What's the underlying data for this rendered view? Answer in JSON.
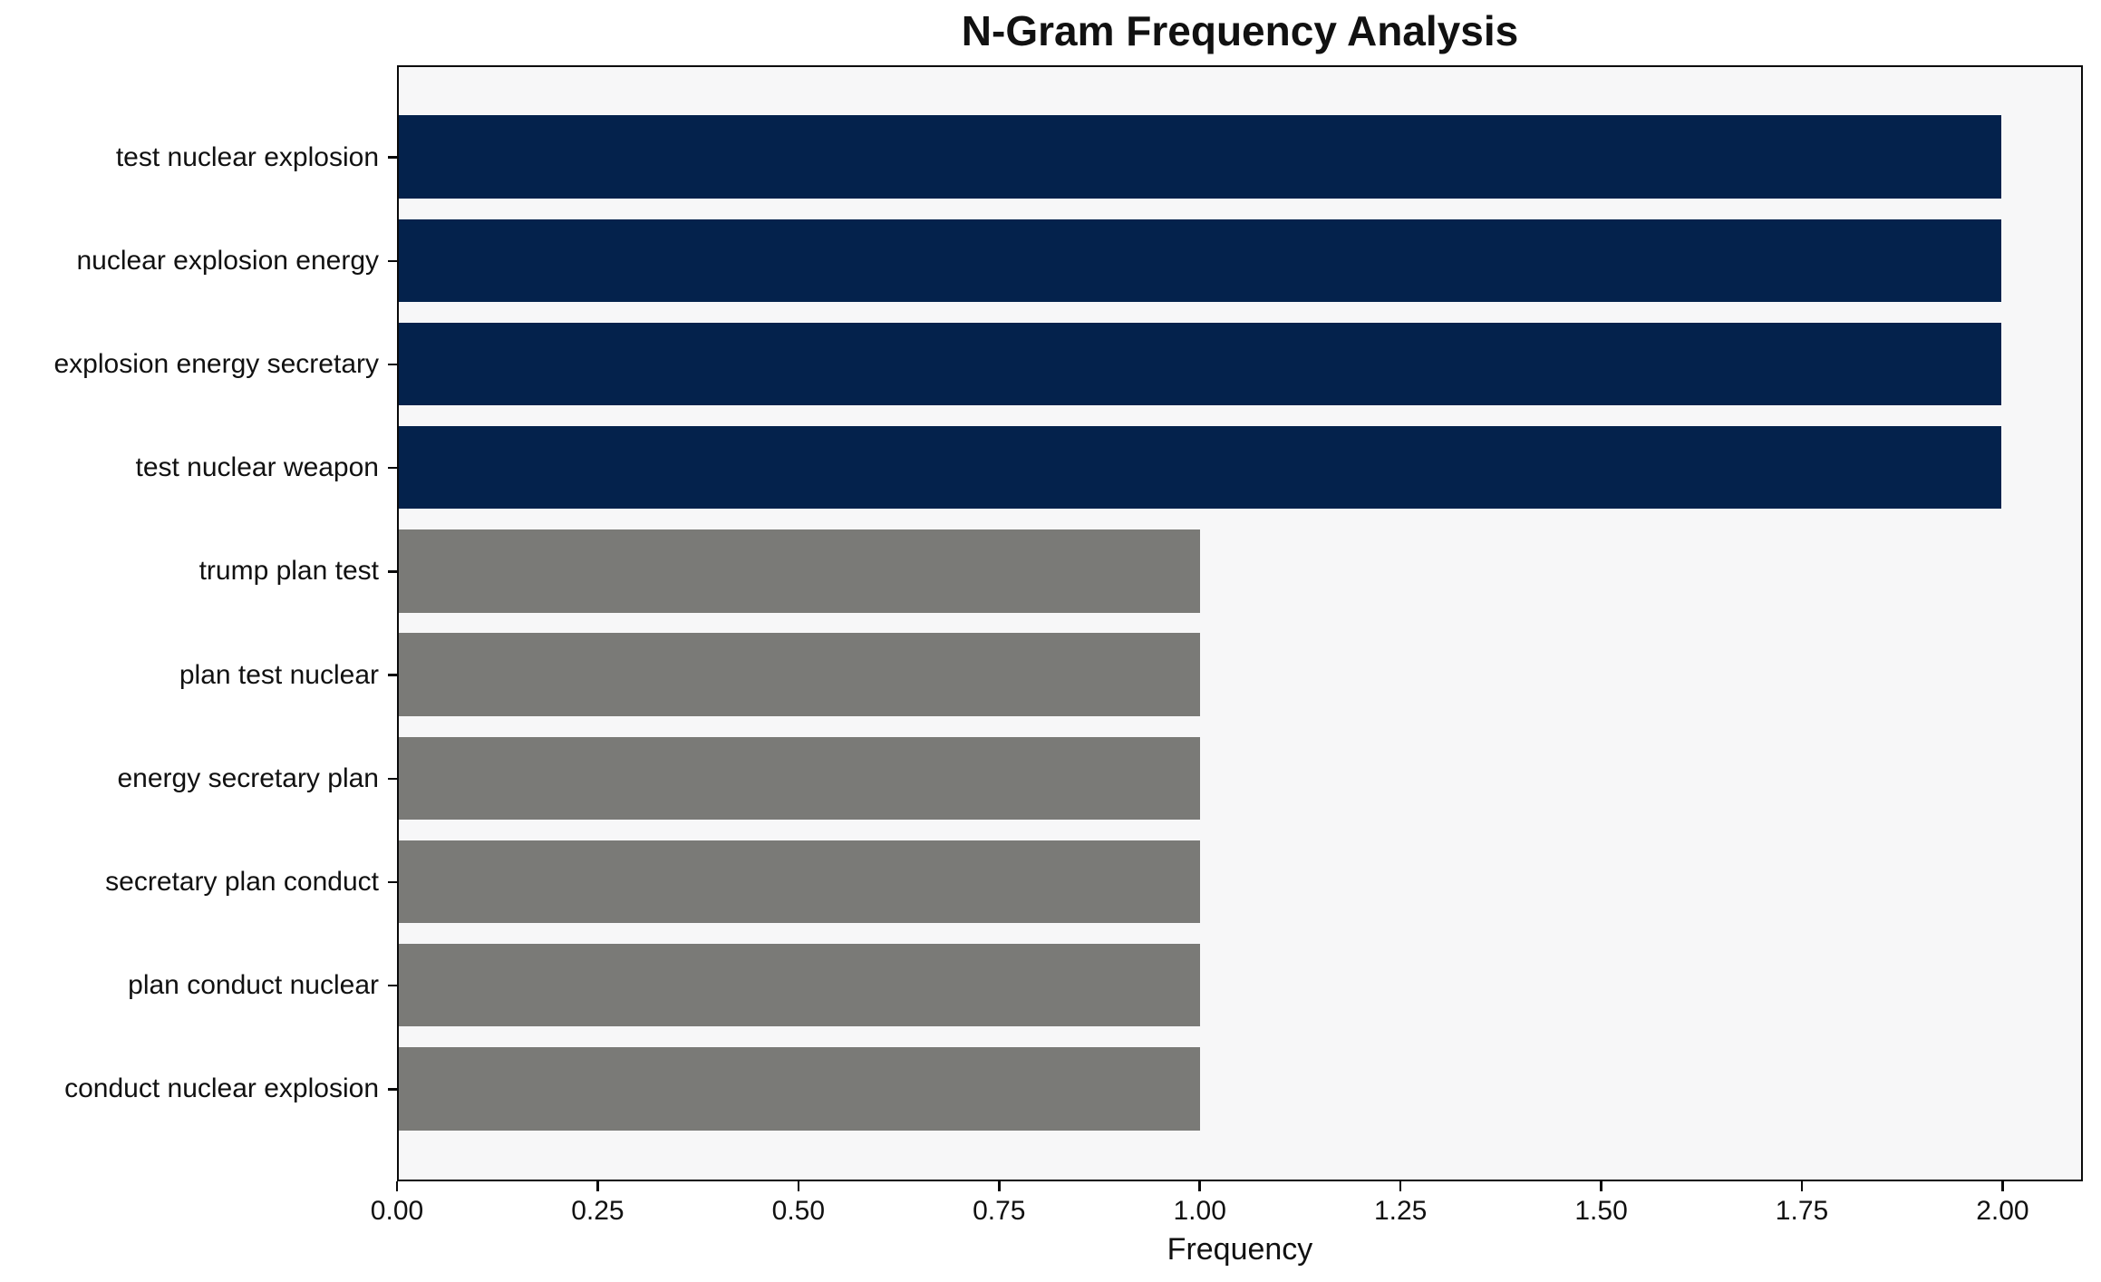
{
  "chart_data": {
    "type": "bar",
    "orientation": "horizontal",
    "title": "N-Gram Frequency Analysis",
    "xlabel": "Frequency",
    "ylabel": "",
    "categories": [
      "test nuclear explosion",
      "nuclear explosion energy",
      "explosion energy secretary",
      "test nuclear weapon",
      "trump plan test",
      "plan test nuclear",
      "energy secretary plan",
      "secretary plan conduct",
      "plan conduct nuclear",
      "conduct nuclear explosion"
    ],
    "values": [
      2,
      2,
      2,
      2,
      1,
      1,
      1,
      1,
      1,
      1
    ],
    "bar_colors": [
      "#04224c",
      "#04224c",
      "#04224c",
      "#04224c",
      "#7a7a77",
      "#7a7a77",
      "#7a7a77",
      "#7a7a77",
      "#7a7a77",
      "#7a7a77"
    ],
    "xlim": [
      0,
      2.1
    ],
    "xticks": {
      "values": [
        0,
        0.25,
        0.5,
        0.75,
        1.0,
        1.25,
        1.5,
        1.75,
        2.0
      ],
      "labels": [
        "0.00",
        "0.25",
        "0.50",
        "0.75",
        "1.00",
        "1.25",
        "1.50",
        "1.75",
        "2.00"
      ]
    },
    "grid": false,
    "legend": false,
    "colors": {
      "highlight_bar": "#04224c",
      "default_bar": "#7a7a77",
      "plot_background": "#f7f7f8",
      "spine": "#0a0a0a"
    }
  }
}
